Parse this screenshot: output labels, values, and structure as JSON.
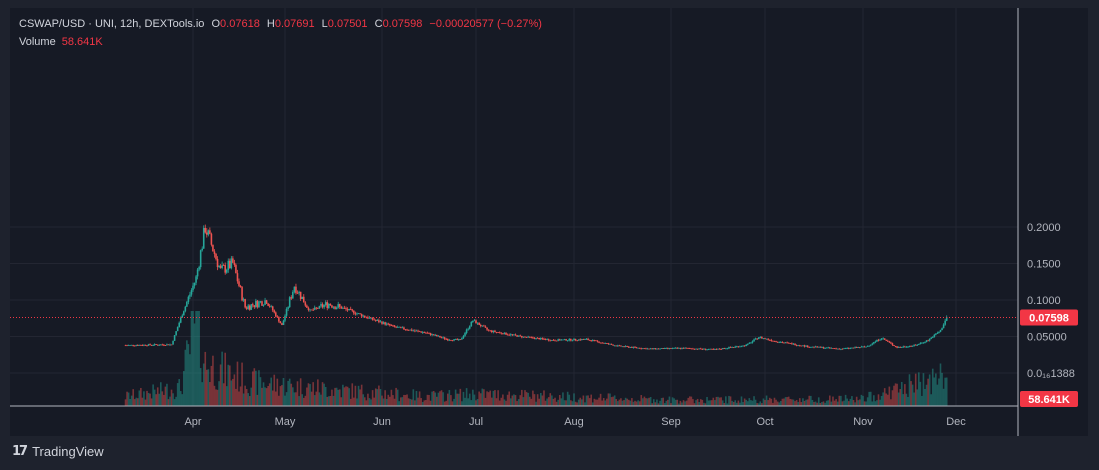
{
  "legend": {
    "symbol": "CSWAP/USD · UNI, 12h, DEXTools.io",
    "o_label": "O",
    "o": "0.07618",
    "h_label": "H",
    "h": "0.07691",
    "l_label": "L",
    "l": "0.07501",
    "c_label": "C",
    "c": "0.07598",
    "change": "−0.00020577 (−0.27%)"
  },
  "volume": {
    "label": "Volume",
    "value": "58.641K"
  },
  "branding": {
    "logo": "17",
    "name": "TradingView"
  },
  "colors": {
    "up": "#26a69a",
    "down": "#ef5350",
    "background": "#161a25",
    "grid": "#232632",
    "last_price": "#f23645"
  },
  "chart_data": {
    "type": "candlestick",
    "timeframe": "12h",
    "x_tick_labels": [
      "Apr",
      "May",
      "Jun",
      "Jul",
      "Aug",
      "Sep",
      "Oct",
      "Nov",
      "Dec"
    ],
    "y_tick_labels": [
      "0.2000",
      "0.1500",
      "0.1000",
      "0.05000",
      "0.0₁₆1388"
    ],
    "ylim": [
      0.0,
      0.235
    ],
    "last_price": 0.07598,
    "last_price_label": "0.07598",
    "last_volume_label": "58.641K",
    "grid": true,
    "price_keypoints": [
      [
        "2024-03-10",
        0.038
      ],
      [
        "2024-03-25",
        0.039
      ],
      [
        "2024-03-28",
        0.075
      ],
      [
        "2024-04-02",
        0.13
      ],
      [
        "2024-04-05",
        0.2
      ],
      [
        "2024-04-10",
        0.14
      ],
      [
        "2024-04-14",
        0.15
      ],
      [
        "2024-04-18",
        0.09
      ],
      [
        "2024-04-25",
        0.1
      ],
      [
        "2024-04-30",
        0.065
      ],
      [
        "2024-05-04",
        0.12
      ],
      [
        "2024-05-09",
        0.085
      ],
      [
        "2024-05-15",
        0.095
      ],
      [
        "2024-05-22",
        0.085
      ],
      [
        "2024-05-28",
        0.075
      ],
      [
        "2024-06-05",
        0.063
      ],
      [
        "2024-06-15",
        0.055
      ],
      [
        "2024-06-22",
        0.046
      ],
      [
        "2024-06-26",
        0.045
      ],
      [
        "2024-06-30",
        0.072
      ],
      [
        "2024-07-05",
        0.058
      ],
      [
        "2024-07-15",
        0.05
      ],
      [
        "2024-07-25",
        0.045
      ],
      [
        "2024-08-05",
        0.046
      ],
      [
        "2024-08-15",
        0.037
      ],
      [
        "2024-08-25",
        0.033
      ],
      [
        "2024-09-05",
        0.034
      ],
      [
        "2024-09-15",
        0.032
      ],
      [
        "2024-09-25",
        0.038
      ],
      [
        "2024-09-29",
        0.049
      ],
      [
        "2024-10-05",
        0.043
      ],
      [
        "2024-10-15",
        0.036
      ],
      [
        "2024-10-25",
        0.033
      ],
      [
        "2024-11-02",
        0.036
      ],
      [
        "2024-11-07",
        0.048
      ],
      [
        "2024-11-12",
        0.035
      ],
      [
        "2024-11-18",
        0.038
      ],
      [
        "2024-11-22",
        0.045
      ],
      [
        "2024-11-26",
        0.058
      ],
      [
        "2024-11-28",
        0.076
      ]
    ],
    "volume_keypoints": [
      [
        "2024-03-10",
        0.08
      ],
      [
        "2024-03-28",
        0.15
      ],
      [
        "2024-04-02",
        0.7
      ],
      [
        "2024-04-05",
        0.35
      ],
      [
        "2024-04-20",
        0.2
      ],
      [
        "2024-05-10",
        0.15
      ],
      [
        "2024-06-15",
        0.08
      ],
      [
        "2024-07-01",
        0.1
      ],
      [
        "2024-09-01",
        0.05
      ],
      [
        "2024-11-01",
        0.06
      ],
      [
        "2024-11-28",
        0.25
      ]
    ]
  }
}
